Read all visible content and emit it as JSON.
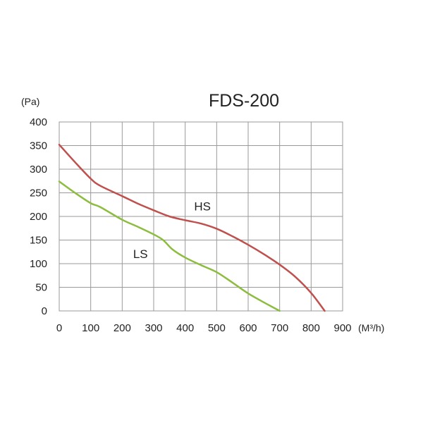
{
  "chart_data": {
    "type": "line",
    "title": "FDS-200",
    "ylabel": "(Pa)",
    "xlabel": "(M³/h)",
    "xlim": [
      0,
      900
    ],
    "ylim": [
      0,
      400
    ],
    "x_ticks": [
      0,
      100,
      200,
      300,
      400,
      500,
      600,
      700,
      800,
      900
    ],
    "y_ticks": [
      0,
      50,
      100,
      150,
      200,
      250,
      300,
      350,
      400
    ],
    "grid": true,
    "series": [
      {
        "name": "HS",
        "color": "#c0504d",
        "points": [
          [
            0,
            352
          ],
          [
            50,
            315
          ],
          [
            100,
            280
          ],
          [
            130,
            265
          ],
          [
            200,
            243
          ],
          [
            250,
            227
          ],
          [
            300,
            213
          ],
          [
            350,
            200
          ],
          [
            400,
            192
          ],
          [
            450,
            185
          ],
          [
            500,
            174
          ],
          [
            550,
            158
          ],
          [
            600,
            140
          ],
          [
            650,
            120
          ],
          [
            700,
            98
          ],
          [
            750,
            72
          ],
          [
            800,
            38
          ],
          [
            843,
            0
          ]
        ]
      },
      {
        "name": "LS",
        "color": "#8dbd3e",
        "points": [
          [
            0,
            274
          ],
          [
            50,
            250
          ],
          [
            100,
            228
          ],
          [
            130,
            220
          ],
          [
            200,
            193
          ],
          [
            250,
            178
          ],
          [
            300,
            162
          ],
          [
            330,
            150
          ],
          [
            360,
            130
          ],
          [
            400,
            113
          ],
          [
            450,
            97
          ],
          [
            500,
            82
          ],
          [
            550,
            60
          ],
          [
            600,
            37
          ],
          [
            650,
            18
          ],
          [
            700,
            0
          ]
        ]
      }
    ]
  }
}
